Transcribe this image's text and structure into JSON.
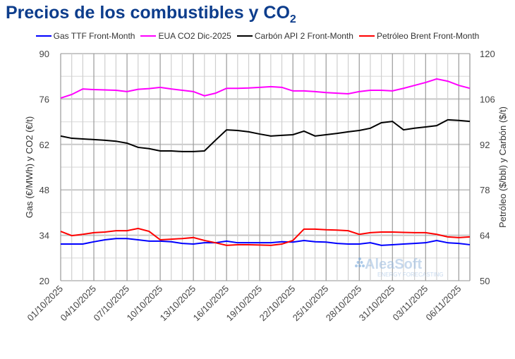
{
  "title": "Precios de los combustibles y CO",
  "title_sub": "2",
  "colors": {
    "title": "#0d3d8c",
    "gas": "#0000ff",
    "eua": "#ff00ff",
    "coal": "#000000",
    "brent": "#ff0000"
  },
  "logo": {
    "name": "AleaSoft",
    "tagline": "ENERGY FORECASTING"
  },
  "chart_data": {
    "type": "line",
    "title": "Precios de los combustibles y CO2",
    "ylabel": "Gas (€/MWh) y CO2 (€/t)",
    "y2label": "Petróleo ($/bbl) y Carbón ($/t)",
    "ylim": [
      20,
      90
    ],
    "yticks": [
      20,
      34,
      48,
      62,
      76,
      90
    ],
    "y2lim": [
      50,
      120
    ],
    "y2ticks": [
      50,
      64,
      78,
      92,
      106,
      120
    ],
    "grid": true,
    "legend": "top",
    "x": [
      "01/10/2025",
      "02/10/2025",
      "03/10/2025",
      "04/10/2025",
      "05/10/2025",
      "06/10/2025",
      "07/10/2025",
      "08/10/2025",
      "09/10/2025",
      "10/10/2025",
      "11/10/2025",
      "12/10/2025",
      "13/10/2025",
      "14/10/2025",
      "15/10/2025",
      "16/10/2025",
      "17/10/2025",
      "18/10/2025",
      "19/10/2025",
      "20/10/2025",
      "21/10/2025",
      "22/10/2025",
      "23/10/2025",
      "24/10/2025",
      "25/10/2025",
      "26/10/2025",
      "27/10/2025",
      "28/10/2025",
      "29/10/2025",
      "30/10/2025",
      "31/10/2025",
      "01/11/2025",
      "02/11/2025",
      "03/11/2025",
      "04/11/2025",
      "05/11/2025",
      "06/11/2025",
      "07/11/2025"
    ],
    "xticks": [
      "01/10/2025",
      "04/10/2025",
      "07/10/2025",
      "10/10/2025",
      "13/10/2025",
      "16/10/2025",
      "19/10/2025",
      "22/10/2025",
      "25/10/2025",
      "28/10/2025",
      "31/10/2025",
      "03/11/2025",
      "06/11/2025"
    ],
    "series": [
      {
        "name": "Gas TTF Front-Month",
        "axis": "left",
        "color": "#0000ff",
        "values": [
          31.3,
          31.3,
          31.3,
          32,
          32.6,
          33,
          33,
          32.6,
          32.2,
          32.2,
          32,
          31.5,
          31.3,
          31.7,
          31.7,
          32.2,
          31.7,
          31.7,
          31.7,
          31.7,
          32,
          31.9,
          32.4,
          32,
          31.9,
          31.5,
          31.3,
          31.3,
          31.7,
          30.9,
          31.1,
          31.3,
          31.5,
          31.7,
          32.4,
          31.7,
          31.5,
          31.1
        ]
      },
      {
        "name": "EUA CO2 Dic-2025",
        "axis": "left",
        "color": "#ff00ff",
        "values": [
          76.3,
          77.4,
          79.1,
          78.9,
          78.8,
          78.7,
          78.3,
          79,
          79.2,
          79.6,
          79.1,
          78.7,
          78.3,
          77,
          77.8,
          79.3,
          79.3,
          79.4,
          79.6,
          79.8,
          79.6,
          78.5,
          78.5,
          78.3,
          78,
          77.8,
          77.6,
          78.3,
          78.7,
          78.7,
          78.5,
          79.3,
          80.2,
          81.1,
          82.2,
          81.5,
          80.2,
          79.3
        ]
      },
      {
        "name": "Carbón API 2 Front-Month",
        "axis": "right",
        "color": "#000000",
        "values": [
          94.6,
          93.9,
          93.7,
          93.5,
          93.3,
          93,
          92.4,
          91.1,
          90.7,
          90,
          90,
          89.8,
          89.8,
          90,
          93.3,
          96.5,
          96.3,
          95.9,
          95.2,
          94.6,
          94.8,
          95,
          96.1,
          94.6,
          95,
          95.4,
          95.9,
          96.3,
          97,
          98.7,
          99.1,
          96.5,
          97,
          97.4,
          97.8,
          99.6,
          99.4,
          99.1
        ]
      },
      {
        "name": "Petróleo Brent Front-Month",
        "axis": "right",
        "color": "#ff0000",
        "values": [
          65.2,
          63.9,
          64.3,
          64.8,
          65,
          65.4,
          65.4,
          66.1,
          65.2,
          62.6,
          62.8,
          63,
          63.3,
          62.4,
          61.7,
          60.9,
          61.1,
          61.1,
          61,
          60.9,
          61.3,
          62.4,
          65.9,
          65.9,
          65.7,
          65.6,
          65.4,
          64.3,
          64.8,
          65,
          65,
          64.9,
          64.8,
          64.8,
          64.3,
          63.5,
          63.3,
          63.5
        ]
      }
    ]
  }
}
